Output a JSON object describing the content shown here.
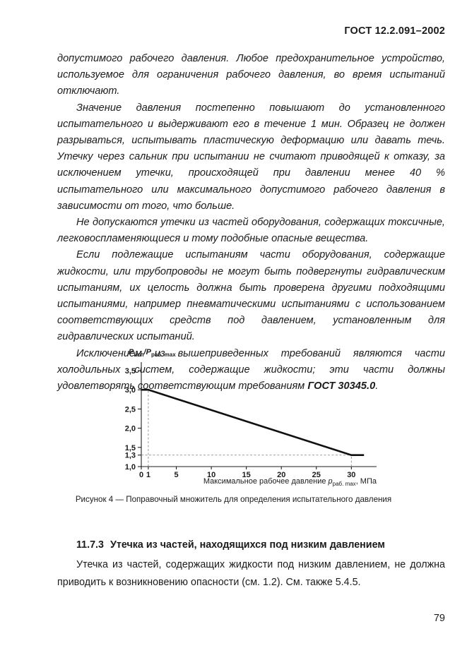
{
  "header": {
    "title": "ГОСТ 12.2.091–2002"
  },
  "body": {
    "p1": "допустимого рабочего давления. Любое предохранительное устройство, используемое для ограничения рабочего давления, во время испытаний отключают.",
    "p2": "Значение давления постепенно повышают до установленного испытательного и выдерживают его в течение 1 мин. Образец не должен разрываться, испытывать пластическую деформацию или давать течь. Утечку через сальник при испытании не считают приводящей к отказу, за исключением утечки, происходящей при давлении менее 40 % испытательного или максимального допустимого рабочего давления в зависимости от того, что больше.",
    "p3": "Не допускаются утечки из частей оборудования, содержащих токсичные, легковоспламеняющиеся и тому подобные опасные вещества.",
    "p4": "Если подлежащие испытаниям части оборудования, содержащие жидкости, или трубопроводы не могут быть подвергнуты гидравлическим испытаниям, их целость должна быть проверена другими подходящими испытаниями, например пневматическими испытаниями с использованием соответствующих средств под давлением, установленным для гидравлических испытаний.",
    "p5_lead": "Исключением из вышеприведенных требований являются части холодильных систем, содержащие жидкости; эти части должны удовлетворять соответствующим требованиям ",
    "p5_bold": "ГОСТ 30345.0",
    "p5_tail": "."
  },
  "figure": {
    "caption": "Рисунок 4 — Поправочный множитель для определения испытательного давления"
  },
  "section": {
    "number": "11.7.3",
    "title": "Утечка из частей, находящихся под низким давлением",
    "paragraph": "Утечка из частей, содержащих жидкости под низким давлением, не должна приводить к возникновению опасности (см. 1.2). См. также 5.4.5."
  },
  "page": {
    "number": "79"
  },
  "chart_data": {
    "type": "line",
    "title": "Рисунок 4 — Поправочный множитель для определения испытательного давления",
    "ylabel": "Pисп/Pраб. max",
    "xlabel": "Максимальное рабочее давление Pраб. max, МПа",
    "xlim": [
      0,
      33.6
    ],
    "ylim": [
      1.0,
      3.72
    ],
    "grid": false,
    "x_ticks": {
      "values": [
        0,
        1,
        5,
        10,
        15,
        20,
        25,
        30
      ],
      "labels": [
        "0",
        "1",
        "5",
        "10",
        "15",
        "20",
        "25",
        "30"
      ]
    },
    "y_ticks": {
      "values": [
        1.0,
        1.3,
        1.5,
        2.0,
        2.5,
        3.0,
        3.5
      ],
      "labels": [
        "1,0",
        "1,3",
        "1,5",
        "2,0",
        "2,5",
        "3,0",
        "3,5"
      ]
    },
    "series": [
      {
        "name": "pressure-correction-factor",
        "points": [
          [
            0,
            3.0
          ],
          [
            1,
            3.0
          ],
          [
            30,
            1.3
          ],
          [
            31.8,
            1.3
          ]
        ]
      }
    ],
    "guides": [
      {
        "type": "v",
        "x": 1,
        "y1": 1.0,
        "y2": 3.0
      },
      {
        "type": "h",
        "y": 1.3,
        "x1": 0,
        "x2": 30
      },
      {
        "type": "v",
        "x": 30,
        "y1": 1.0,
        "y2": 1.3
      }
    ],
    "axis_labels": {
      "y_parts": {
        "p1": "P",
        "sub1": "исп",
        "p2": "/P",
        "sub2": "раб. max"
      },
      "x_parts": {
        "t1": "Максимальное рабочее давление ",
        "p": "p",
        "sub": "раб. max",
        "t2": ", МПа"
      }
    }
  }
}
